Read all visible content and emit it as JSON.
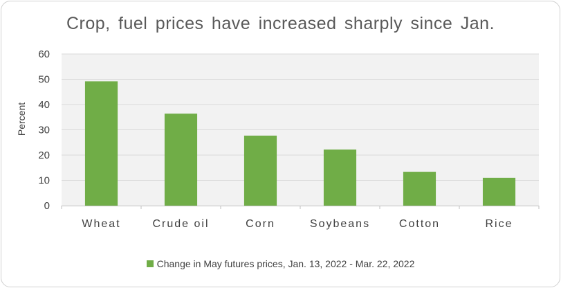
{
  "chart_data": {
    "type": "bar",
    "title": "Crop, fuel prices have increased sharply since Jan.",
    "xlabel": "",
    "ylabel": "Percent",
    "categories": [
      "Wheat",
      "Crude oil",
      "Corn",
      "Soybeans",
      "Cotton",
      "Rice"
    ],
    "series": [
      {
        "name": "Change in May futures prices, Jan. 13, 2022 - Mar. 22, 2022",
        "values": [
          49.2,
          36.4,
          27.7,
          22.2,
          13.4,
          11.0
        ]
      }
    ],
    "ylim": [
      0,
      60
    ],
    "yticks": [
      "0",
      "10",
      "20",
      "30",
      "40",
      "50",
      "60"
    ],
    "grid": true,
    "legend": "bottom",
    "colors": {
      "bar": "#70ad47",
      "plot_background": "#f2f2f2",
      "grid": "#d9d9d9",
      "axis": "#bfbfbf",
      "text": "#404040",
      "title": "#595959"
    }
  }
}
